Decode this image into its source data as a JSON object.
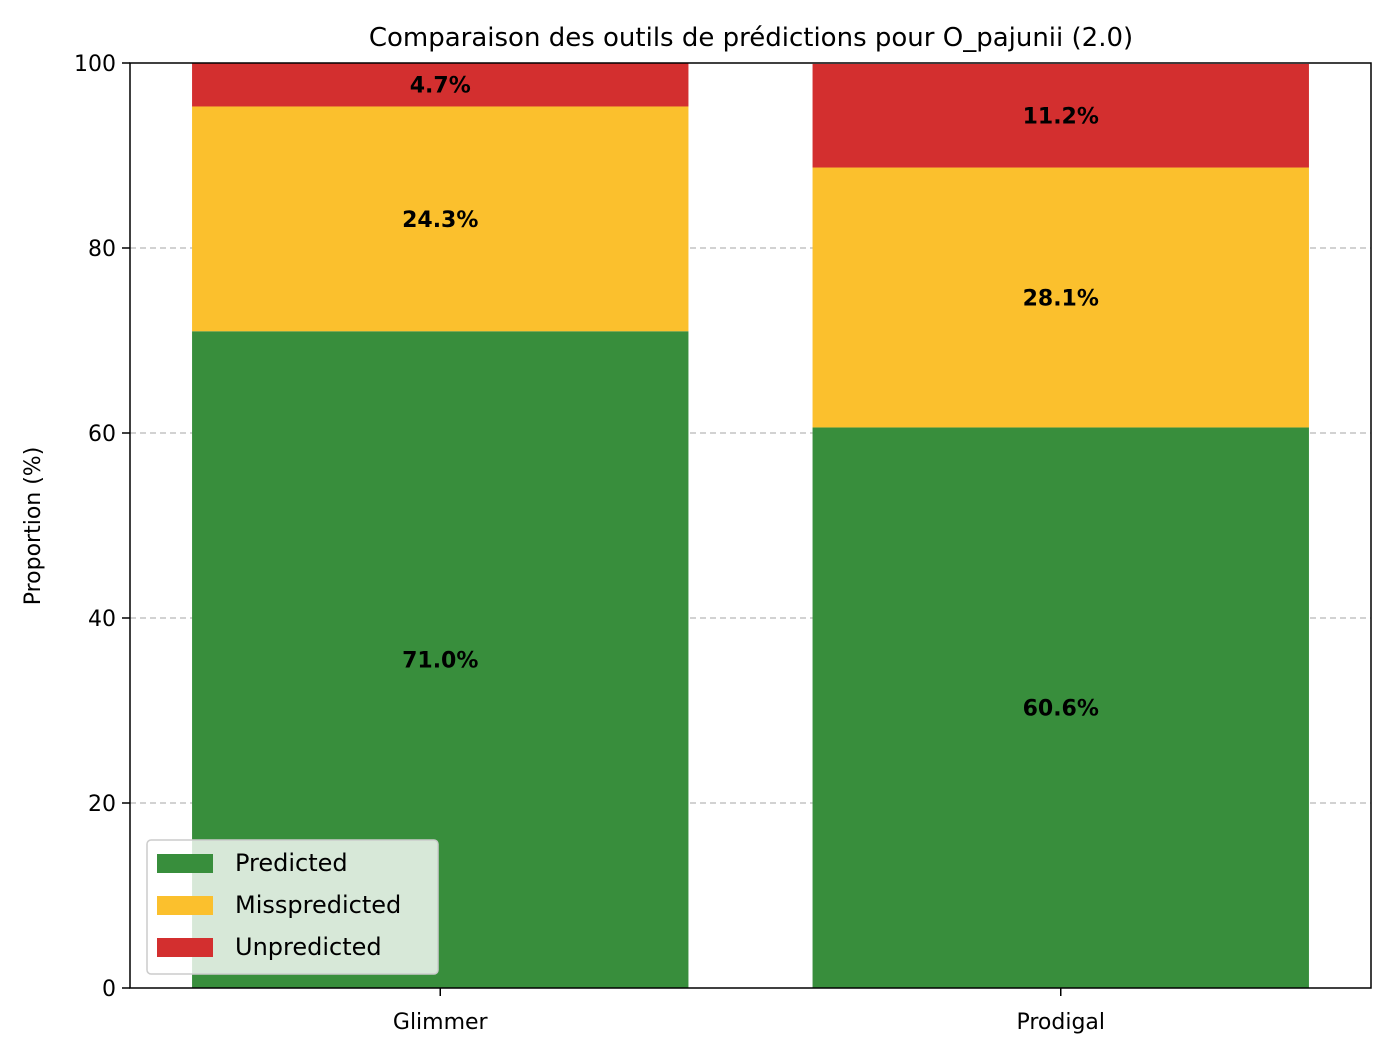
{
  "chart_data": {
    "type": "bar",
    "stacked": true,
    "title": "Comparaison des outils de prédictions pour O_pajunii (2.0)",
    "xlabel": "",
    "ylabel": "Proportion (%)",
    "categories": [
      "Glimmer",
      "Prodigal"
    ],
    "series": [
      {
        "name": "Predicted",
        "color": "#388E3C",
        "values": [
          71.0,
          60.6
        ],
        "labels": [
          "71.0%",
          "60.6%"
        ]
      },
      {
        "name": "Misspredicted",
        "color": "#FBC02D",
        "values": [
          24.3,
          28.1
        ],
        "labels": [
          "24.3%",
          "28.1%"
        ]
      },
      {
        "name": "Unpredicted",
        "color": "#D32F2F",
        "values": [
          4.7,
          11.2
        ],
        "labels": [
          "4.7%",
          "11.2%"
        ]
      }
    ],
    "ylim": [
      0,
      100
    ],
    "yticks": [
      0,
      20,
      40,
      60,
      80,
      100
    ],
    "grid": "y-dashed",
    "legend_position": "lower-left"
  }
}
